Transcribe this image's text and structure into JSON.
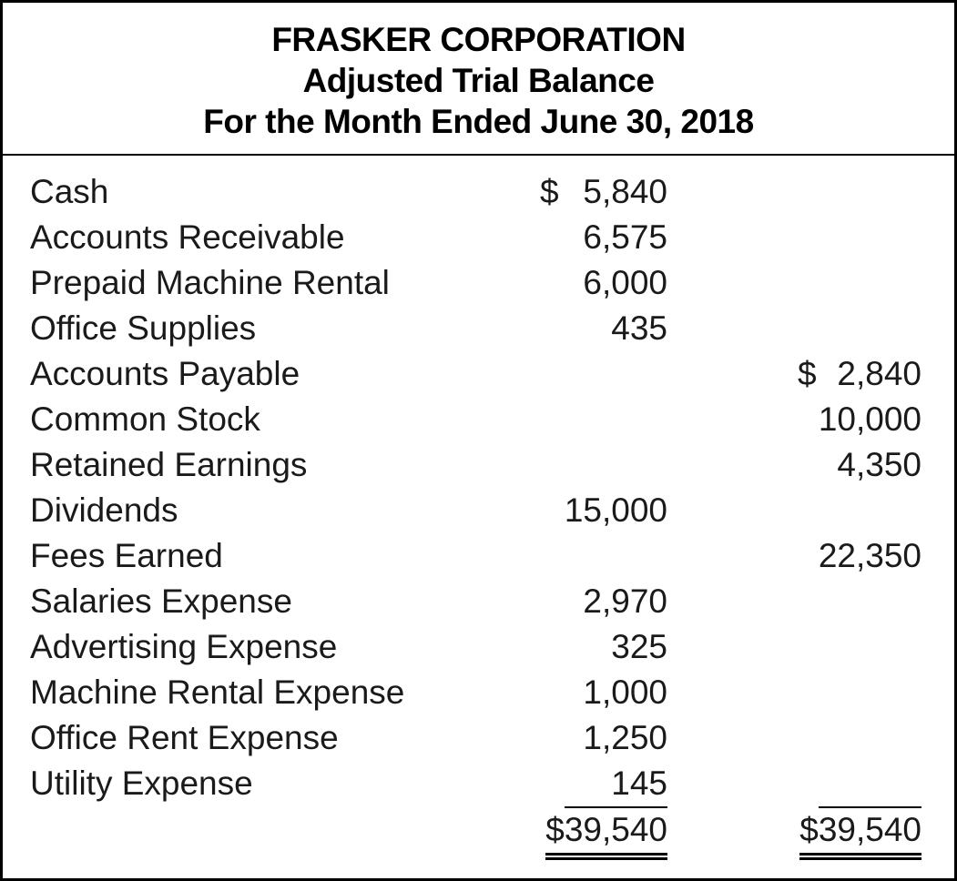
{
  "header": {
    "company": "FRASKER CORPORATION",
    "report_title": "Adjusted Trial Balance",
    "period": "For the Month Ended June 30, 2018"
  },
  "table": {
    "rows": [
      {
        "account": "Cash",
        "debit_symbol": "$",
        "debit": "5,840",
        "credit_symbol": "",
        "credit": ""
      },
      {
        "account": "Accounts Receivable",
        "debit_symbol": "",
        "debit": "6,575",
        "credit_symbol": "",
        "credit": ""
      },
      {
        "account": "Prepaid Machine Rental",
        "debit_symbol": "",
        "debit": "6,000",
        "credit_symbol": "",
        "credit": ""
      },
      {
        "account": "Office Supplies",
        "debit_symbol": "",
        "debit": "435",
        "credit_symbol": "",
        "credit": ""
      },
      {
        "account": "Accounts Payable",
        "debit_symbol": "",
        "debit": "",
        "credit_symbol": "$",
        "credit": "2,840"
      },
      {
        "account": "Common Stock",
        "debit_symbol": "",
        "debit": "",
        "credit_symbol": "",
        "credit": "10,000"
      },
      {
        "account": "Retained Earnings",
        "debit_symbol": "",
        "debit": "",
        "credit_symbol": "",
        "credit": "4,350"
      },
      {
        "account": "Dividends",
        "debit_symbol": "",
        "debit": "15,000",
        "credit_symbol": "",
        "credit": ""
      },
      {
        "account": "Fees Earned",
        "debit_symbol": "",
        "debit": "",
        "credit_symbol": "",
        "credit": "22,350"
      },
      {
        "account": "Salaries Expense",
        "debit_symbol": "",
        "debit": "2,970",
        "credit_symbol": "",
        "credit": ""
      },
      {
        "account": "Advertising Expense",
        "debit_symbol": "",
        "debit": "325",
        "credit_symbol": "",
        "credit": ""
      },
      {
        "account": "Machine Rental Expense",
        "debit_symbol": "",
        "debit": "1,000",
        "credit_symbol": "",
        "credit": ""
      },
      {
        "account": "Office Rent Expense",
        "debit_symbol": "",
        "debit": "1,250",
        "credit_symbol": "",
        "credit": ""
      },
      {
        "account": "Utility Expense",
        "debit_symbol": "",
        "debit": "145",
        "credit_symbol": "",
        "credit": ""
      }
    ],
    "totals": {
      "debit_symbol": "$",
      "debit": "39,540",
      "credit_symbol": "$",
      "credit": "39,540"
    }
  }
}
